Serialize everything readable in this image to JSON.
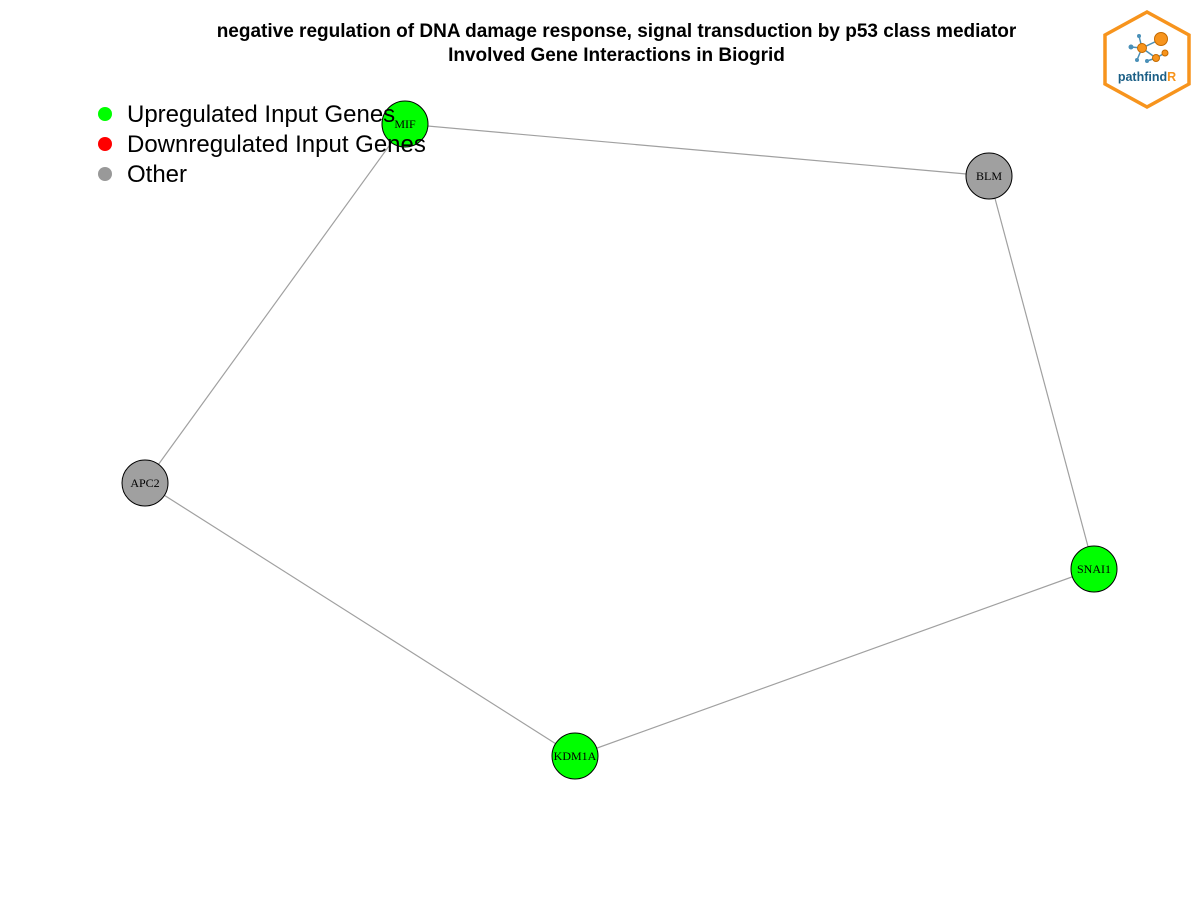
{
  "title": {
    "line1": "negative regulation of DNA damage response, signal transduction by p53 class mediator",
    "line2": "Involved Gene Interactions in Biogrid"
  },
  "legend": [
    {
      "label": "Upregulated Input Genes",
      "color": "#00ff00"
    },
    {
      "label": "Downregulated Input Genes",
      "color": "#ff0000"
    },
    {
      "label": "Other",
      "color": "#999999"
    }
  ],
  "colors": {
    "up": "#00ff00",
    "down": "#ff0000",
    "other": "#a0a0a0",
    "edge": "#a0a0a0",
    "logo_orange": "#f7941d",
    "logo_blue": "#1b5f86"
  },
  "network": {
    "nodes": [
      {
        "id": "MIF",
        "group": "up"
      },
      {
        "id": "BLM",
        "group": "other"
      },
      {
        "id": "APC2",
        "group": "other"
      },
      {
        "id": "SNAI1",
        "group": "up"
      },
      {
        "id": "KDM1A",
        "group": "up"
      }
    ],
    "edges": [
      [
        "MIF",
        "BLM"
      ],
      [
        "MIF",
        "APC2"
      ],
      [
        "BLM",
        "SNAI1"
      ],
      [
        "APC2",
        "KDM1A"
      ],
      [
        "KDM1A",
        "SNAI1"
      ]
    ]
  },
  "logo": {
    "text_main": "pathfind",
    "text_accent": "R",
    "icon": "network-hexagon-icon"
  }
}
